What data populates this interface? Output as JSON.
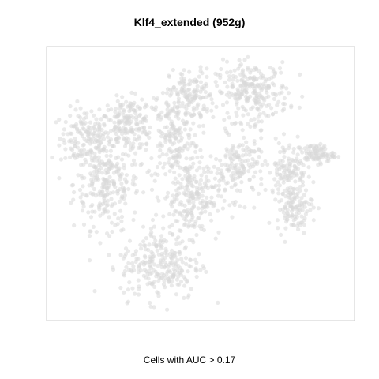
{
  "chart_data": {
    "type": "scatter",
    "title": "Klf4_extended (952g)",
    "xlabel": "Cells with AUC > 0.17",
    "ylabel": "",
    "grid": false,
    "axes_ticks": false,
    "point_color": "#d9d9d9",
    "box_color": "#cccccc",
    "xlim": [
      0,
      100
    ],
    "ylim": [
      0,
      100
    ],
    "clusters": [
      {
        "cx": 12,
        "cy": 67,
        "rx": 7,
        "ry": 9,
        "n": 150
      },
      {
        "cx": 19,
        "cy": 50,
        "rx": 9,
        "ry": 14,
        "n": 260
      },
      {
        "cx": 26,
        "cy": 72,
        "rx": 7,
        "ry": 8,
        "n": 180
      },
      {
        "cx": 41,
        "cy": 68,
        "rx": 7,
        "ry": 15,
        "n": 200
      },
      {
        "cx": 47,
        "cy": 83,
        "rx": 6,
        "ry": 8,
        "n": 120
      },
      {
        "cx": 67,
        "cy": 84,
        "rx": 10,
        "ry": 9,
        "n": 260
      },
      {
        "cx": 63,
        "cy": 56,
        "rx": 7,
        "ry": 10,
        "n": 150
      },
      {
        "cx": 47,
        "cy": 45,
        "rx": 8,
        "ry": 12,
        "n": 230
      },
      {
        "cx": 37,
        "cy": 20,
        "rx": 11,
        "ry": 11,
        "n": 260
      },
      {
        "cx": 79,
        "cy": 55,
        "rx": 5,
        "ry": 9,
        "n": 110
      },
      {
        "cx": 81,
        "cy": 41,
        "rx": 5,
        "ry": 7,
        "n": 110
      },
      {
        "cx": 88,
        "cy": 61,
        "rx": 5,
        "ry": 3,
        "n": 90
      }
    ]
  }
}
